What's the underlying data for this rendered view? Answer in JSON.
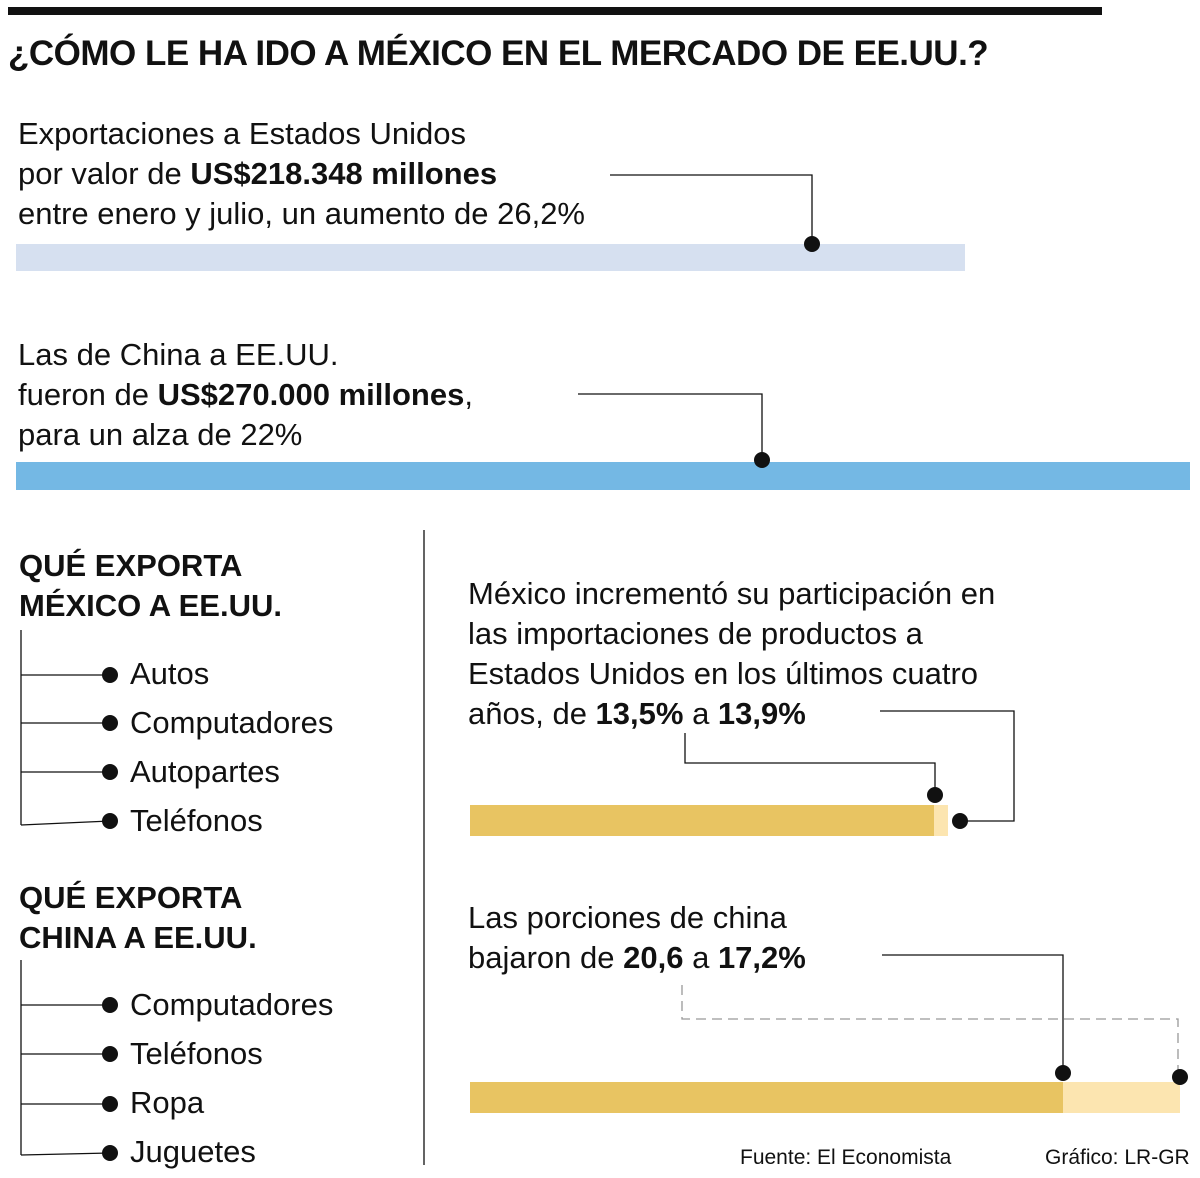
{
  "title": "¿CÓMO LE HA IDO A MÉXICO EN EL MERCADO DE EE.UU.?",
  "mexico_exports": {
    "line1": "Exportaciones a Estados Unidos",
    "line2_pre": "por valor de ",
    "line2_bold": "US$218.348 millones",
    "line3_pre": "entre enero y julio, un aumento de ",
    "line3_val": "26,2%"
  },
  "china_exports": {
    "line1": "Las de China a EE.UU.",
    "line2_pre": "fueron de ",
    "line2_bold": "US$270.000 millones",
    "line2_post": ",",
    "line3_pre": "para un alza de ",
    "line3_val": "22%"
  },
  "mexico_products": {
    "heading1": "QUÉ EXPORTA",
    "heading2": "MÉXICO A EE.UU.",
    "items": [
      "Autos",
      "Computadores",
      "Autopartes",
      "Teléfonos"
    ]
  },
  "china_products": {
    "heading1": "QUÉ EXPORTA",
    "heading2": "CHINA A EE.UU.",
    "items": [
      "Computadores",
      "Teléfonos",
      "Ropa",
      "Juguetes"
    ]
  },
  "mexico_share": {
    "line1": "México incrementó su participación en",
    "line2": "las importaciones de productos a",
    "line3": "Estados Unidos en los últimos cuatro",
    "line4_pre": "años, de ",
    "from": "13,5%",
    "mid": " a ",
    "to": "13,9%"
  },
  "china_share": {
    "line1": "Las porciones de china",
    "line2_pre": "bajaron de ",
    "from": "20,6",
    "mid": " a ",
    "to": "17,2%"
  },
  "footer": {
    "source": "Fuente: El Economista",
    "credit": "Gráfico: LR-GR"
  },
  "colors": {
    "mexico_bar": "#d6e0f0",
    "china_bar": "#74b8e4",
    "share_dark": "#e8c462",
    "share_light": "#fce5b0"
  },
  "chart_data": {
    "type": "bar",
    "title": "¿CÓMO LE HA IDO A MÉXICO EN EL MERCADO DE EE.UU.?",
    "exports_usd_millions": {
      "categories": [
        "México",
        "China"
      ],
      "values": [
        218348,
        270000
      ],
      "growth_pct": [
        26.2,
        22
      ]
    },
    "import_share_pct": [
      {
        "name": "México",
        "from": 13.5,
        "to": 13.9
      },
      {
        "name": "China",
        "from": 20.6,
        "to": 17.2
      }
    ]
  }
}
